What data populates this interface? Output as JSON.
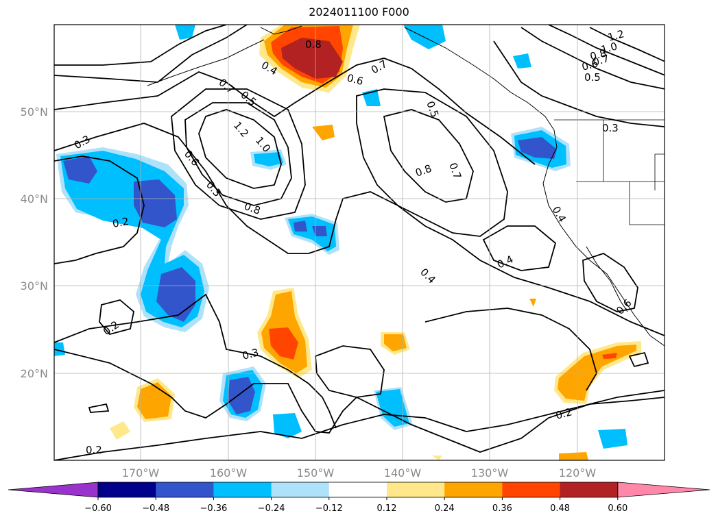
{
  "title": "2024011100 F000",
  "latitude_labels": [
    "50°N",
    "40°N",
    "30°N",
    "20°N"
  ],
  "longitude_labels": [
    "170°W",
    "160°W",
    "150°W",
    "140°W",
    "130°W",
    "120°W"
  ],
  "colorbar": {
    "ticks": [
      "−0.60",
      "−0.48",
      "−0.36",
      "−0.24",
      "−0.12",
      "0.12",
      "0.24",
      "0.36",
      "0.48",
      "0.60"
    ],
    "colors": [
      "#9933cc",
      "#00008b",
      "#3355cc",
      "#00bfff",
      "#aee2fa",
      "#ffffff",
      "#ffe88a",
      "#ffa500",
      "#ff4500",
      "#b22222",
      "#ff88aa"
    ]
  },
  "contour_labels": [
    "0.8",
    "0.4",
    "0.6",
    "0.7",
    "0.5",
    "0.7",
    "0.5",
    "1.2",
    "1.0",
    "0.8",
    "0.7",
    "0.6",
    "0.5",
    "0.3",
    "0.3",
    "1.2",
    "1.0",
    "0.6",
    "0.3",
    "0.8",
    "0.8",
    "0.7",
    "0.2",
    "0.4",
    "0.4",
    "0.4",
    "0.6",
    "0.2",
    "0.3",
    "0.2",
    "0.2"
  ]
}
